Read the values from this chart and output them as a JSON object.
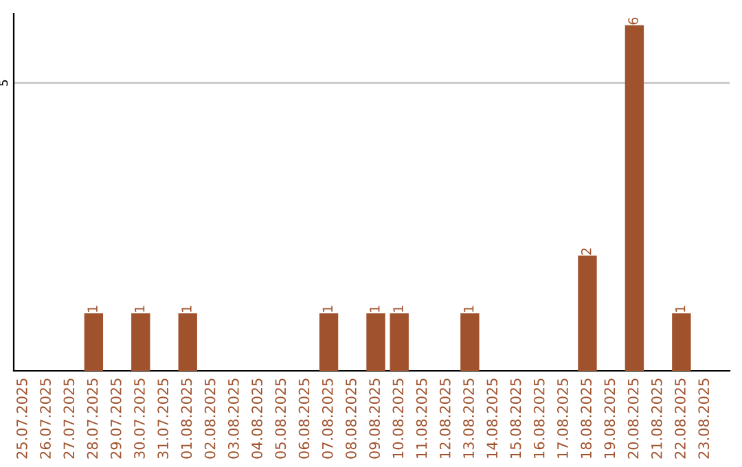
{
  "chart_data": {
    "type": "bar",
    "categories": [
      "25.07.2025",
      "26.07.2025",
      "27.07.2025",
      "28.07.2025",
      "29.07.2025",
      "30.07.2025",
      "31.07.2025",
      "01.08.2025",
      "02.08.2025",
      "03.08.2025",
      "04.08.2025",
      "05.08.2025",
      "06.08.2025",
      "07.08.2025",
      "08.08.2025",
      "09.08.2025",
      "10.08.2025",
      "11.08.2025",
      "12.08.2025",
      "13.08.2025",
      "14.08.2025",
      "15.08.2025",
      "16.08.2025",
      "17.08.2025",
      "18.08.2025",
      "19.08.2025",
      "20.08.2025",
      "21.08.2025",
      "22.08.2025",
      "23.08.2025"
    ],
    "values": [
      0,
      0,
      0,
      1,
      0,
      1,
      0,
      1,
      0,
      0,
      0,
      0,
      0,
      1,
      0,
      1,
      1,
      0,
      0,
      1,
      0,
      0,
      0,
      0,
      2,
      0,
      6,
      0,
      1,
      0
    ],
    "value_labels": [
      null,
      null,
      null,
      "1",
      null,
      "1",
      null,
      "1",
      null,
      null,
      null,
      null,
      null,
      "1",
      null,
      "1",
      "1",
      null,
      null,
      "1",
      null,
      null,
      null,
      null,
      "2",
      null,
      "6",
      null,
      "1",
      null
    ],
    "color": "#a0522d",
    "ylim": [
      0,
      6.2
    ],
    "yticks": [
      5
    ],
    "grid": "y"
  }
}
